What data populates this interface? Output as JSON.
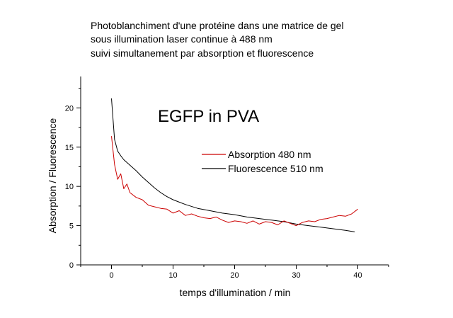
{
  "title_lines": [
    "Photoblanchiment d'une protéine dans une matrice de gel",
    "sous illumination laser continue  à 488 nm",
    "suivi simultanement par absorption et fluorescence"
  ],
  "chart_data": {
    "type": "line",
    "annotation": "EGFP in PVA",
    "xlabel": "temps d'illumination  / min",
    "ylabel": "Absorption / Fluorescence",
    "xlim": [
      -5,
      45
    ],
    "ylim": [
      0,
      24
    ],
    "xticks": [
      "0",
      "10",
      "20",
      "30",
      "40"
    ],
    "yticks": [
      "0",
      "5",
      "10",
      "15",
      "20"
    ],
    "legend_position": "upper-right",
    "series": [
      {
        "name": "Absorption 480 nm",
        "color": "#cc0000",
        "x": [
          0,
          0.5,
          1,
          1.5,
          2,
          2.5,
          3,
          4,
          5,
          6,
          7,
          8,
          9,
          10,
          11,
          12,
          13,
          14,
          15,
          16,
          17,
          18,
          19,
          20,
          21,
          22,
          23,
          24,
          25,
          26,
          27,
          28,
          29,
          30,
          31,
          32,
          33,
          34,
          35,
          36,
          37,
          38,
          39,
          40
        ],
        "y": [
          16.4,
          12.8,
          10.9,
          11.6,
          9.7,
          10.3,
          9.2,
          8.6,
          8.3,
          7.6,
          7.4,
          7.2,
          7.1,
          6.6,
          6.9,
          6.3,
          6.5,
          6.2,
          6.0,
          5.9,
          6.1,
          5.7,
          5.4,
          5.6,
          5.5,
          5.3,
          5.6,
          5.2,
          5.5,
          5.4,
          5.1,
          5.6,
          5.3,
          5.0,
          5.4,
          5.6,
          5.5,
          5.8,
          5.9,
          6.1,
          6.3,
          6.2,
          6.5,
          7.1
        ]
      },
      {
        "name": "Fluorescence 510 nm",
        "color": "#000000",
        "x": [
          0,
          0.5,
          1,
          1.5,
          2,
          3,
          4,
          5,
          6,
          7,
          8,
          9,
          10,
          12,
          14,
          16,
          18,
          20,
          22,
          24,
          26,
          28,
          30,
          32,
          34,
          36,
          38,
          39.5
        ],
        "y": [
          21.2,
          16.0,
          14.5,
          13.9,
          13.4,
          12.7,
          12.0,
          11.2,
          10.5,
          9.8,
          9.2,
          8.7,
          8.3,
          7.7,
          7.2,
          6.9,
          6.6,
          6.4,
          6.1,
          5.9,
          5.7,
          5.5,
          5.2,
          5.0,
          4.8,
          4.6,
          4.4,
          4.2
        ]
      }
    ]
  }
}
